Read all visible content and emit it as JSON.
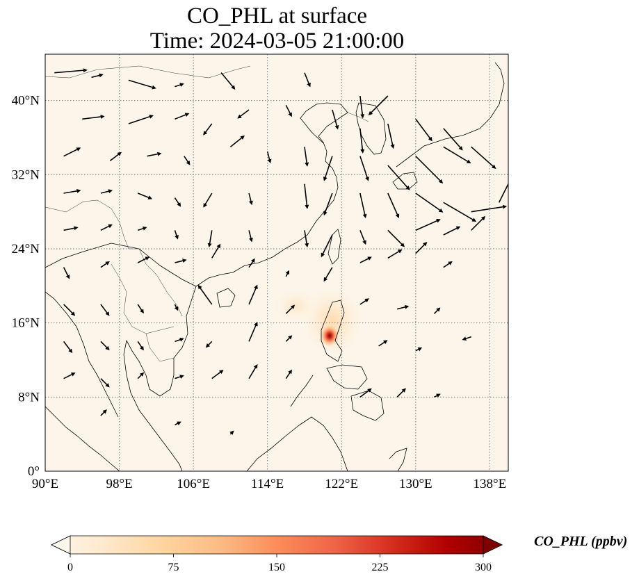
{
  "title": {
    "line1": "CO_PHL at surface",
    "line2": "Time: 2024-03-05 21:00:00"
  },
  "map": {
    "lon_range": [
      90,
      140
    ],
    "lat_range": [
      0,
      45
    ],
    "background_color": "#fdf5ea",
    "gridlines": "dotted",
    "lon_ticks": [
      {
        "value": 90,
        "label": "90°E"
      },
      {
        "value": 98,
        "label": "98°E"
      },
      {
        "value": 106,
        "label": "106°E"
      },
      {
        "value": 114,
        "label": "114°E"
      },
      {
        "value": 122,
        "label": "122°E"
      },
      {
        "value": 130,
        "label": "130°E"
      },
      {
        "value": 138,
        "label": "138°E"
      }
    ],
    "lat_ticks": [
      {
        "value": 0,
        "label": "0°"
      },
      {
        "value": 8,
        "label": "8°N"
      },
      {
        "value": 16,
        "label": "16°N"
      },
      {
        "value": 24,
        "label": "24°N"
      },
      {
        "value": 32,
        "label": "32°N"
      },
      {
        "value": 40,
        "label": "40°N"
      }
    ],
    "hotspot": {
      "lon": 120.8,
      "lat": 14.6,
      "peak_color": "#7f0000"
    }
  },
  "colorbar": {
    "label": "CO_PHL (ppbv)",
    "min": 0,
    "max": 300,
    "extend": "both",
    "cmap": "OrRd",
    "colors": [
      "#fff7ec",
      "#fee8c8",
      "#fdd49e",
      "#fdbb84",
      "#fc8d59",
      "#ef6548",
      "#d7301f",
      "#b30000",
      "#7f0000"
    ],
    "ticks": [
      {
        "value": 0,
        "label": "0"
      },
      {
        "value": 75,
        "label": "75"
      },
      {
        "value": 150,
        "label": "150"
      },
      {
        "value": 225,
        "label": "225"
      },
      {
        "value": 300,
        "label": "300"
      }
    ]
  },
  "winds": [
    [
      91,
      43,
      1.2,
      0.1
    ],
    [
      95,
      42.5,
      0.4,
      0.1
    ],
    [
      99,
      42.2,
      1,
      -0.3
    ],
    [
      104,
      41.5,
      0.3,
      0.1
    ],
    [
      109,
      43,
      0.5,
      -0.6
    ],
    [
      118,
      43,
      0.2,
      -0.5
    ],
    [
      124,
      40.5,
      0.1,
      -0.8
    ],
    [
      127,
      40.5,
      -0.7,
      -0.7
    ],
    [
      94,
      38,
      0.8,
      0.1
    ],
    [
      99,
      37.5,
      0.9,
      0.3
    ],
    [
      104,
      38,
      0.5,
      0.2
    ],
    [
      108,
      37.5,
      -0.3,
      -0.4
    ],
    [
      112,
      39,
      -0.4,
      -0.3
    ],
    [
      116,
      39.5,
      0.2,
      -0.4
    ],
    [
      121,
      39,
      0.2,
      -0.7
    ],
    [
      124,
      37,
      0.1,
      -0.9
    ],
    [
      127,
      37.5,
      0.2,
      -0.9
    ],
    [
      130,
      38,
      0.6,
      -0.8
    ],
    [
      133,
      37,
      0.7,
      -0.8
    ],
    [
      136,
      35,
      0.9,
      -0.8
    ],
    [
      92,
      34,
      0.6,
      0.3
    ],
    [
      97,
      33.5,
      0.4,
      0.3
    ],
    [
      101,
      34,
      0.5,
      0.1
    ],
    [
      105,
      34,
      0.2,
      -0.3
    ],
    [
      110,
      35,
      0.5,
      0.4
    ],
    [
      114,
      34.5,
      0.1,
      -0.4
    ],
    [
      118,
      35,
      0.1,
      -0.7
    ],
    [
      121,
      34,
      -0.3,
      -0.9
    ],
    [
      124,
      34,
      0.3,
      -0.9
    ],
    [
      127,
      33,
      0.8,
      -0.9
    ],
    [
      130,
      34,
      1,
      -1
    ],
    [
      133,
      35,
      1,
      -0.6
    ],
    [
      92,
      30,
      0.6,
      0.1
    ],
    [
      96,
      30,
      0.4,
      0.1
    ],
    [
      100,
      30,
      0.5,
      -0.2
    ],
    [
      104,
      29.5,
      0.2,
      -0.3
    ],
    [
      108,
      30,
      -0.3,
      -0.5
    ],
    [
      112,
      30,
      0.1,
      -0.4
    ],
    [
      118,
      31,
      0.1,
      -0.9
    ],
    [
      121,
      30,
      -0.3,
      -0.8
    ],
    [
      124,
      30,
      0.2,
      -0.9
    ],
    [
      127,
      30,
      0.4,
      -0.9
    ],
    [
      130,
      30,
      1,
      -0.7
    ],
    [
      133,
      29,
      1.2,
      -0.7
    ],
    [
      136,
      28,
      1.3,
      0.2
    ],
    [
      139,
      29,
      0.5,
      1
    ],
    [
      92,
      26,
      0.5,
      0.1
    ],
    [
      96,
      26,
      0.4,
      0.2
    ],
    [
      100,
      26,
      0.3,
      0.1
    ],
    [
      104,
      26,
      0.1,
      -0.3
    ],
    [
      108,
      26,
      -0.1,
      -0.6
    ],
    [
      112,
      26,
      0.1,
      -0.4
    ],
    [
      118,
      26,
      0.1,
      -0.6
    ],
    [
      121,
      25.5,
      -0.4,
      -0.8
    ],
    [
      124,
      26,
      0.2,
      -0.5
    ],
    [
      127,
      26,
      0.6,
      -0.6
    ],
    [
      130,
      26,
      0.9,
      0.4
    ],
    [
      133,
      25.5,
      0.6,
      0.3
    ],
    [
      136,
      26,
      0.5,
      0.5
    ],
    [
      92,
      22,
      0.2,
      -0.4
    ],
    [
      96,
      22,
      0.3,
      0.2
    ],
    [
      100,
      22.5,
      0.4,
      0.2
    ],
    [
      104,
      22.5,
      0.4,
      0.1
    ],
    [
      108,
      23,
      0.3,
      0.5
    ],
    [
      112,
      22,
      0.2,
      0.3
    ],
    [
      116,
      21,
      0.1,
      0.2
    ],
    [
      121,
      22,
      -0.3,
      -0.5
    ],
    [
      124,
      22.5,
      0.4,
      0.2
    ],
    [
      127,
      23,
      0.5,
      0.3
    ],
    [
      130,
      23.5,
      0.4,
      0.4
    ],
    [
      133,
      22,
      0.3,
      0.2
    ],
    [
      92,
      18,
      0.4,
      -0.4
    ],
    [
      96,
      18,
      0.3,
      -0.4
    ],
    [
      100,
      18,
      0.2,
      -0.3
    ],
    [
      104,
      18,
      0.1,
      -0.2
    ],
    [
      108,
      18,
      -0.5,
      0.7
    ],
    [
      112,
      18,
      0.3,
      0.7
    ],
    [
      116,
      17,
      0.3,
      0.3
    ],
    [
      124,
      18,
      0.3,
      0.2
    ],
    [
      128,
      17.5,
      0.4,
      0.1
    ],
    [
      132,
      17,
      0.2,
      0.2
    ],
    [
      92,
      14,
      0.3,
      -0.4
    ],
    [
      96,
      14,
      0.3,
      -0.3
    ],
    [
      100,
      14,
      0.2,
      -0.3
    ],
    [
      104,
      14,
      0.3,
      0.1
    ],
    [
      108,
      14,
      -0.2,
      -0.2
    ],
    [
      112,
      14,
      0.3,
      0.7
    ],
    [
      116,
      14,
      0.2,
      0.2
    ],
    [
      126,
      13.5,
      0.3,
      0.2
    ],
    [
      130,
      13,
      0.2,
      0.1
    ],
    [
      136,
      14.5,
      -0.3,
      -0.1
    ],
    [
      92,
      10,
      0.4,
      0.2
    ],
    [
      96,
      10,
      0.3,
      -0.3
    ],
    [
      100,
      10,
      0.2,
      0.2
    ],
    [
      104,
      10,
      0.3,
      0.1
    ],
    [
      108,
      10,
      0.4,
      0.3
    ],
    [
      112,
      10,
      0.3,
      0.5
    ],
    [
      116,
      10,
      0.2,
      0.3
    ],
    [
      124,
      8,
      0.4,
      0.3
    ],
    [
      128,
      8,
      0.3,
      0.3
    ],
    [
      132,
      8,
      0.2,
      0.1
    ],
    [
      96,
      6,
      0.2,
      0.2
    ],
    [
      104,
      5,
      0.2,
      0.1
    ],
    [
      110,
      4,
      0.1,
      0.1
    ]
  ]
}
